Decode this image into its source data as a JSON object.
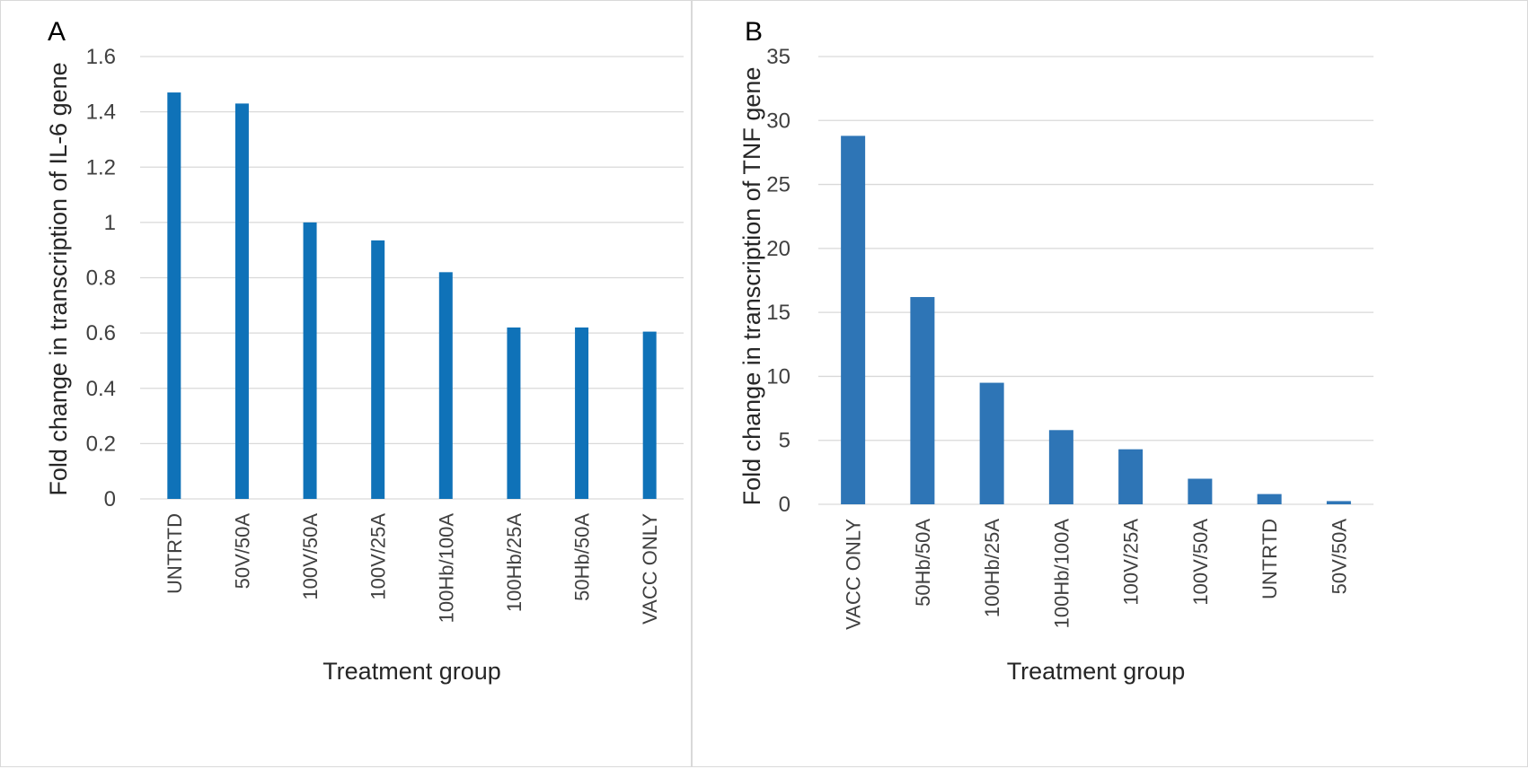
{
  "chart_data": [
    {
      "panel": "A",
      "type": "bar",
      "categories": [
        "UNTRTD",
        "50V/50A",
        "100V/50A",
        "100V/25A",
        "100Hb/100A",
        "100Hb/25A",
        "50Hb/50A",
        "VACC ONLY"
      ],
      "values": [
        1.47,
        1.43,
        1.0,
        0.935,
        0.82,
        0.62,
        0.62,
        0.605
      ],
      "xlabel": "Treatment group",
      "ylabel": "Fold change in transcription of IL-6 gene",
      "ylim": [
        0,
        1.6
      ],
      "yticks": [
        0,
        0.2,
        0.4,
        0.6,
        0.8,
        1,
        1.2,
        1.4,
        1.6
      ],
      "ytick_labels": [
        "0",
        "0.2",
        "0.4",
        "0.6",
        "0.8",
        "1",
        "1.2",
        "1.4",
        "1.6"
      ],
      "grid": true,
      "bar_color": "#0f72b8"
    },
    {
      "panel": "B",
      "type": "bar",
      "categories": [
        "VACC ONLY",
        "50Hb/50A",
        "100Hb/25A",
        "100Hb/100A",
        "100V/25A",
        "100V/50A",
        "UNTRTD",
        "50V/50A"
      ],
      "values": [
        28.8,
        16.2,
        9.5,
        5.8,
        4.3,
        2.0,
        0.8,
        0.25
      ],
      "xlabel": "Treatment group",
      "ylabel": "Fold change in transcription of TNF gene",
      "ylim": [
        0,
        35
      ],
      "yticks": [
        0,
        5,
        10,
        15,
        20,
        25,
        30,
        35
      ],
      "ytick_labels": [
        "0",
        "5",
        "10",
        "15",
        "20",
        "25",
        "30",
        "35"
      ],
      "grid": true,
      "bar_color": "#2e75b6"
    }
  ]
}
